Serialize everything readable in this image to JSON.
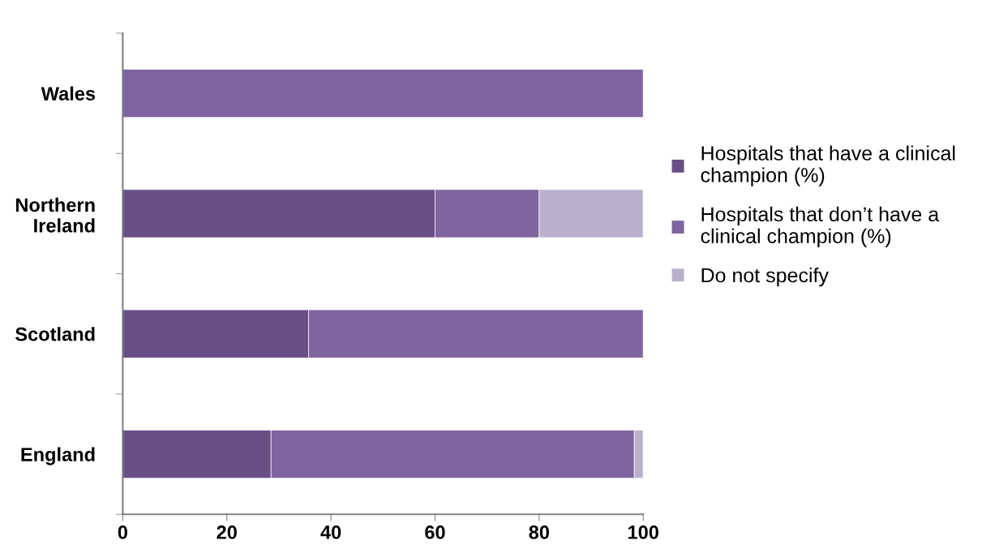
{
  "chart_data": {
    "type": "bar",
    "orientation": "horizontal",
    "stacked": true,
    "categories": [
      "Wales",
      "Northern\nIreland",
      "Scotland",
      "England"
    ],
    "series": [
      {
        "name": "Hospitals that have a clinical champion (%)",
        "color": "#684f86",
        "values": [
          null,
          60,
          35.7,
          28.5
        ]
      },
      {
        "name": "Hospitals that don’t have a clinical champion (%)",
        "color": "#8064a0",
        "values": [
          100,
          20,
          64.3,
          69.8
        ]
      },
      {
        "name": "Do not specify",
        "color": "#bbb0cc",
        "values": [
          null,
          20,
          null,
          1.7
        ]
      }
    ],
    "xlim": [
      0,
      100
    ],
    "xticks": [
      0,
      20,
      40,
      60,
      80,
      100
    ],
    "grid": false,
    "legend": "right"
  }
}
